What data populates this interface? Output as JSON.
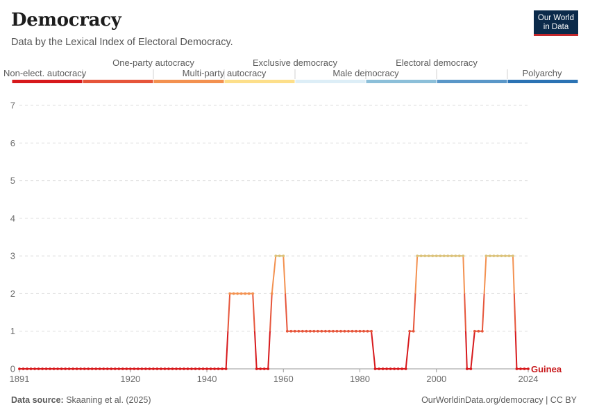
{
  "header": {
    "title": "Democracy",
    "subtitle": "Data by the Lexical Index of Electoral Democracy.",
    "logo_line1": "Our World",
    "logo_line2": "in Data"
  },
  "footer": {
    "source_label": "Data source:",
    "source_text": "Skaaning et al. (2025)",
    "credit": "OurWorldinData.org/democracy | CC BY"
  },
  "legend": [
    {
      "label": "Non-elect. autocracy",
      "color": "#d7191c"
    },
    {
      "label": "One-party autocracy",
      "color": "#e6553a"
    },
    {
      "label": "Multi-party autocracy",
      "color": "#f39150"
    },
    {
      "label": "Exclusive democracy",
      "color": "#fddf8a"
    },
    {
      "label": "Male democracy",
      "color": "#ddeef7"
    },
    {
      "label": "Electoral democracy",
      "color": "#8cbfd9"
    },
    {
      "label": "Polyarchy",
      "color": "#5a97c8"
    },
    {
      "label": "",
      "color": "#2b73b4"
    }
  ],
  "chart_data": {
    "type": "line",
    "title": "Democracy",
    "series_name": "Guinea",
    "x_start": 1891,
    "x_end": 2024,
    "x_ticks": [
      1891,
      1920,
      1940,
      1960,
      1980,
      2000,
      2024
    ],
    "y_ticks": [
      0,
      1,
      2,
      3,
      4,
      5,
      6,
      7
    ],
    "ylim": [
      0,
      7
    ],
    "xlim": [
      1891,
      2024
    ],
    "level_colors": [
      "#d7191c",
      "#e6553a",
      "#f39150",
      "#dbc27a"
    ],
    "segments": [
      {
        "from": 1891,
        "to": 1945,
        "value": 0
      },
      {
        "from": 1946,
        "to": 1952,
        "value": 2
      },
      {
        "from": 1953,
        "to": 1956,
        "value": 0
      },
      {
        "from": 1957,
        "to": 1957,
        "value": 2
      },
      {
        "from": 1958,
        "to": 1960,
        "value": 3
      },
      {
        "from": 1961,
        "to": 1983,
        "value": 1
      },
      {
        "from": 1984,
        "to": 1992,
        "value": 0
      },
      {
        "from": 1993,
        "to": 1994,
        "value": 1
      },
      {
        "from": 1995,
        "to": 2007,
        "value": 3
      },
      {
        "from": 2008,
        "to": 2009,
        "value": 0
      },
      {
        "from": 2010,
        "to": 2012,
        "value": 1
      },
      {
        "from": 2013,
        "to": 2020,
        "value": 3
      },
      {
        "from": 2021,
        "to": 2024,
        "value": 0
      }
    ]
  }
}
